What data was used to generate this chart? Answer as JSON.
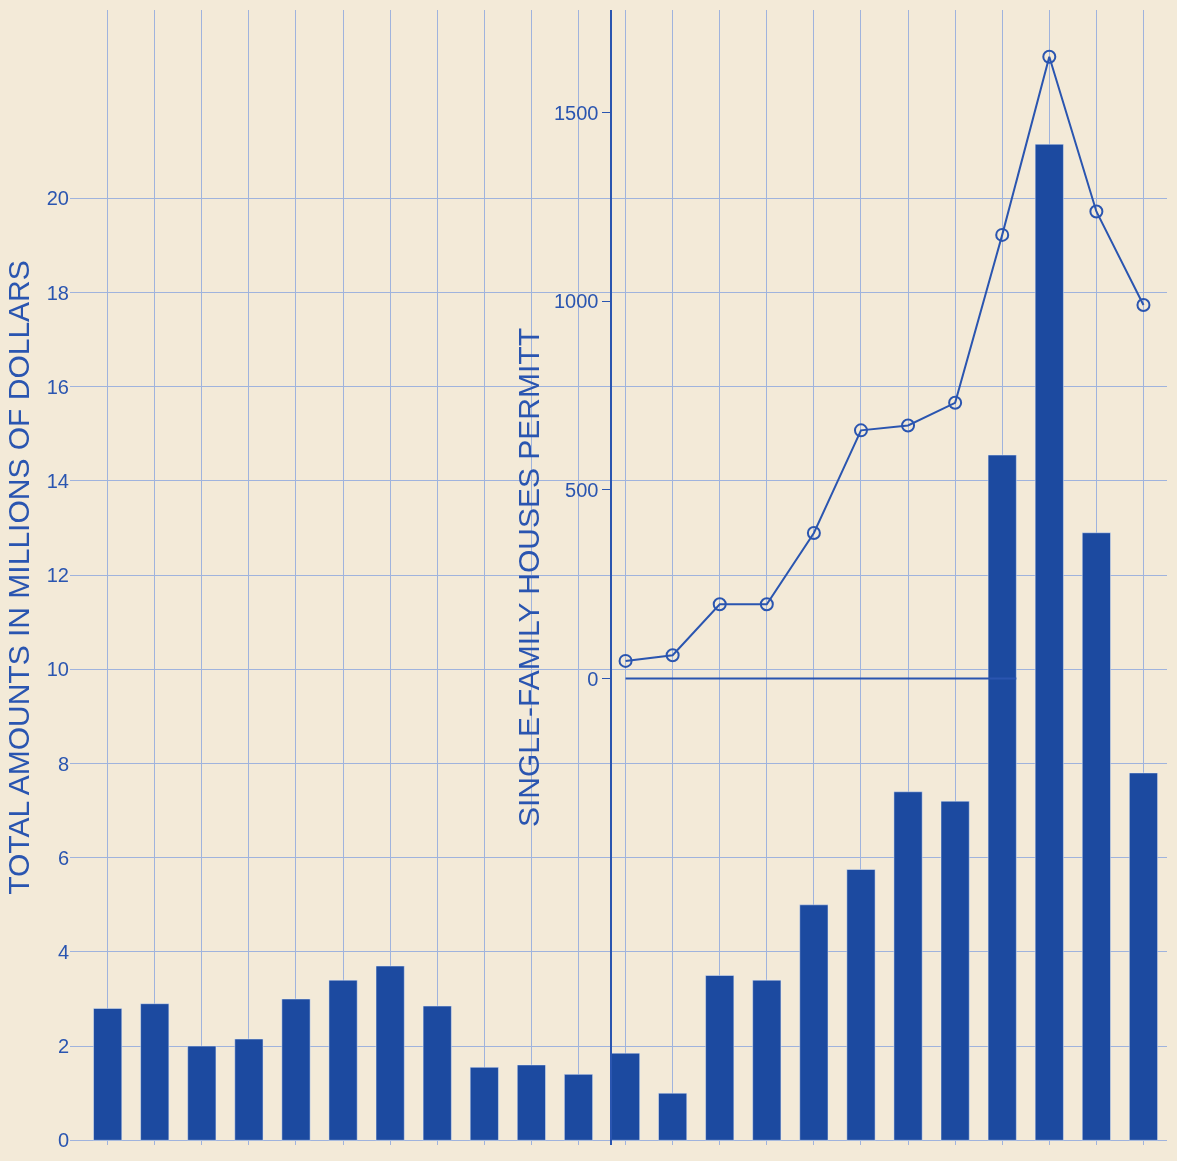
{
  "chart_data": {
    "type": "bar",
    "ylabel": "TOTAL AMOUNTS IN MILLIONS OF DOLLARS",
    "y2label": "SINGLE-FAMILY HOUSES PERMITT",
    "categories": [
      null,
      null,
      null,
      null,
      null,
      null,
      null,
      null,
      null,
      null,
      null,
      null,
      null,
      null,
      null,
      null,
      null,
      null,
      null,
      null,
      null,
      null,
      null
    ],
    "series": [
      {
        "color": "#1c4aa0",
        "values": [
          2.8,
          2.9,
          2.0,
          2.15,
          3.0,
          3.4,
          3.7,
          2.85,
          1.55,
          1.6,
          1.4,
          1.85,
          1.0,
          3.5,
          3.4,
          5.0,
          5.75,
          7.4,
          7.2,
          14.55,
          21.15,
          12.9,
          7.8
        ]
      },
      {
        "type": "line",
        "axis": "y2",
        "color": "#2a55b0",
        "values": [
          null,
          null,
          null,
          null,
          null,
          null,
          null,
          null,
          null,
          null,
          null,
          47,
          62,
          197,
          197,
          386,
          658,
          671,
          731,
          1176,
          1648,
          1238,
          990
        ]
      }
    ],
    "marker": "circle",
    "ylim": [
      -0.1,
      24
    ],
    "yticks": [
      0,
      2,
      4,
      6,
      8,
      10,
      12,
      14,
      16,
      18,
      20
    ],
    "y2lim": [
      -1236,
      1772
    ],
    "y2ticks": [
      0,
      500,
      1000,
      1500
    ],
    "grid": true,
    "ref_lines": [
      {
        "axis": "y2",
        "value": 0,
        "color": "#2a55b0"
      }
    ]
  }
}
